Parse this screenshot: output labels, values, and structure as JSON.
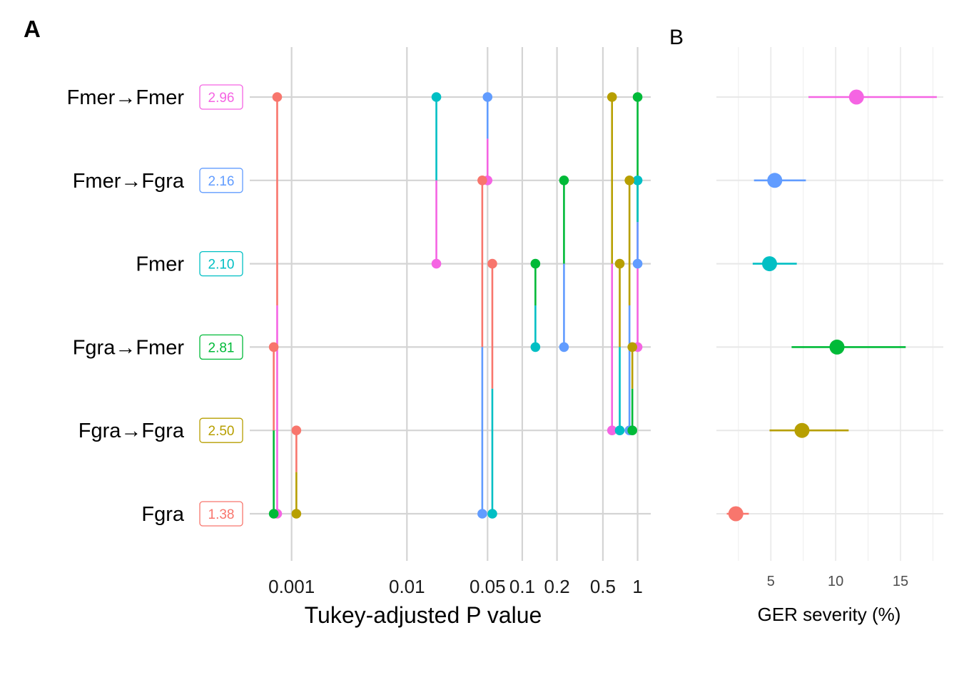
{
  "panel_a_tag": "A",
  "panel_b_tag": "B",
  "chart_data": [
    {
      "type": "scatter",
      "panel": "A",
      "xlabel": "Tukey-adjusted P value",
      "xscale": "log10",
      "xlim": [
        0.0005,
        1.3
      ],
      "xticks": [
        {
          "value": 0.001,
          "label": "0.001"
        },
        {
          "value": 0.01,
          "label": "0.01"
        },
        {
          "value": 0.05,
          "label": "0.05"
        },
        {
          "value": 0.1,
          "label": "0.1"
        },
        {
          "value": 0.2,
          "label": "0.2"
        },
        {
          "value": 0.5,
          "label": "0.5"
        },
        {
          "value": 1,
          "label": "1"
        }
      ],
      "grid": true,
      "categories": [
        "Fmer→Fmer",
        "Fmer→Fgra",
        "Fmer",
        "Fgra→Fmer",
        "Fgra→Fgra",
        "Fgra"
      ],
      "badges": [
        {
          "category": "Fmer→Fmer",
          "text": "2.96",
          "color": "#F564E3"
        },
        {
          "category": "Fmer→Fgra",
          "text": "2.16",
          "color": "#619CFF"
        },
        {
          "category": "Fmer",
          "text": "2.10",
          "color": "#00BFC4"
        },
        {
          "category": "Fgra→Fmer",
          "text": "2.81",
          "color": "#00BA38"
        },
        {
          "category": "Fgra→Fgra",
          "text": "2.50",
          "color": "#B79F00"
        },
        {
          "category": "Fgra",
          "text": "1.38",
          "color": "#F8766D"
        }
      ],
      "pairs": [
        {
          "from": "Fmer→Fmer",
          "to": "Fmer→Fgra",
          "p": 0.05
        },
        {
          "from": "Fmer→Fmer",
          "to": "Fmer",
          "p": 0.018
        },
        {
          "from": "Fmer→Fmer",
          "to": "Fgra→Fmer",
          "p": 1.0
        },
        {
          "from": "Fmer→Fmer",
          "to": "Fgra→Fgra",
          "p": 0.6
        },
        {
          "from": "Fmer→Fmer",
          "to": "Fgra",
          "p": 0.00075
        },
        {
          "from": "Fmer→Fgra",
          "to": "Fmer",
          "p": 1.0
        },
        {
          "from": "Fmer→Fgra",
          "to": "Fgra→Fmer",
          "p": 0.23
        },
        {
          "from": "Fmer→Fgra",
          "to": "Fgra→Fgra",
          "p": 0.85
        },
        {
          "from": "Fmer→Fgra",
          "to": "Fgra",
          "p": 0.045
        },
        {
          "from": "Fmer",
          "to": "Fgra→Fmer",
          "p": 0.13
        },
        {
          "from": "Fmer",
          "to": "Fgra→Fgra",
          "p": 0.7
        },
        {
          "from": "Fmer",
          "to": "Fgra",
          "p": 0.055
        },
        {
          "from": "Fgra→Fmer",
          "to": "Fgra→Fgra",
          "p": 0.9
        },
        {
          "from": "Fgra→Fmer",
          "to": "Fgra",
          "p": 0.0007
        },
        {
          "from": "Fgra→Fgra",
          "to": "Fgra",
          "p": 0.0011
        }
      ]
    },
    {
      "type": "scatter",
      "panel": "B",
      "xlabel": "GER severity (%)",
      "xlim": [
        0.8,
        18.3
      ],
      "xticks": [
        {
          "value": 5,
          "label": "5"
        },
        {
          "value": 10,
          "label": "10"
        },
        {
          "value": 15,
          "label": "15"
        }
      ],
      "grid": true,
      "points": [
        {
          "category": "Fmer→Fmer",
          "value": 11.6,
          "low": 7.9,
          "high": 17.8,
          "color": "#F564E3"
        },
        {
          "category": "Fmer→Fgra",
          "value": 5.3,
          "low": 3.7,
          "high": 7.7,
          "color": "#619CFF"
        },
        {
          "category": "Fmer",
          "value": 4.9,
          "low": 3.6,
          "high": 7.0,
          "color": "#00BFC4"
        },
        {
          "category": "Fgra→Fmer",
          "value": 10.1,
          "low": 6.6,
          "high": 15.4,
          "color": "#00BA38"
        },
        {
          "category": "Fgra→Fgra",
          "value": 7.4,
          "low": 4.9,
          "high": 11.0,
          "color": "#B79F00"
        },
        {
          "category": "Fgra",
          "value": 2.3,
          "low": 1.6,
          "high": 3.3,
          "color": "#F8766D"
        }
      ]
    }
  ]
}
